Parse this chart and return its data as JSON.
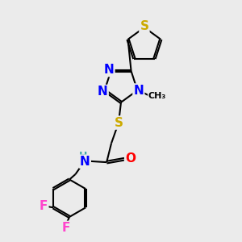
{
  "background_color": "#ebebeb",
  "atom_colors": {
    "N": "#0000ff",
    "S": "#ccaa00",
    "O": "#ff0000",
    "F": "#ff44cc",
    "H_color": "#44aaaa"
  },
  "bond_lw": 1.5,
  "font_size": 11,
  "font_size_small": 9
}
